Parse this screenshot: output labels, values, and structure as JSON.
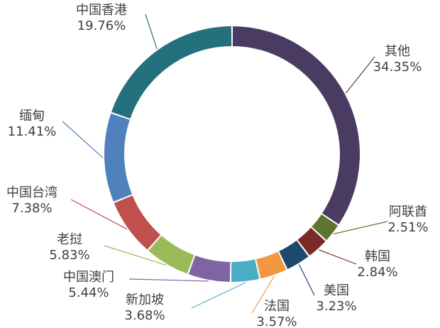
{
  "chart_data": {
    "type": "pie",
    "variant": "donut",
    "direction": "clockwise",
    "start": "top",
    "title": "",
    "legend": "none",
    "slices": [
      {
        "name": "其他",
        "value": 34.35,
        "label": "34.35%",
        "color": "#4a3b62"
      },
      {
        "name": "阿联酋",
        "value": 2.51,
        "label": "2.51%",
        "color": "#5f7431"
      },
      {
        "name": "韩国",
        "value": 2.84,
        "label": "2.84%",
        "color": "#7a2a29"
      },
      {
        "name": "美国",
        "value": 3.23,
        "label": "3.23%",
        "color": "#1f4a70"
      },
      {
        "name": "法国",
        "value": 3.57,
        "label": "3.57%",
        "color": "#f59640"
      },
      {
        "name": "新加坡",
        "value": 3.68,
        "label": "3.68%",
        "color": "#4bacc6"
      },
      {
        "name": "中国澳门",
        "value": 5.44,
        "label": "5.44%",
        "color": "#8064a2"
      },
      {
        "name": "老挝",
        "value": 5.83,
        "label": "5.83%",
        "color": "#9bbb59"
      },
      {
        "name": "中国台湾",
        "value": 7.38,
        "label": "7.38%",
        "color": "#c0504d"
      },
      {
        "name": "缅甸",
        "value": 11.41,
        "label": "11.41%",
        "color": "#4f81bd"
      },
      {
        "name": "中国香港",
        "value": 19.76,
        "label": "19.76%",
        "color": "#24707c"
      }
    ]
  }
}
